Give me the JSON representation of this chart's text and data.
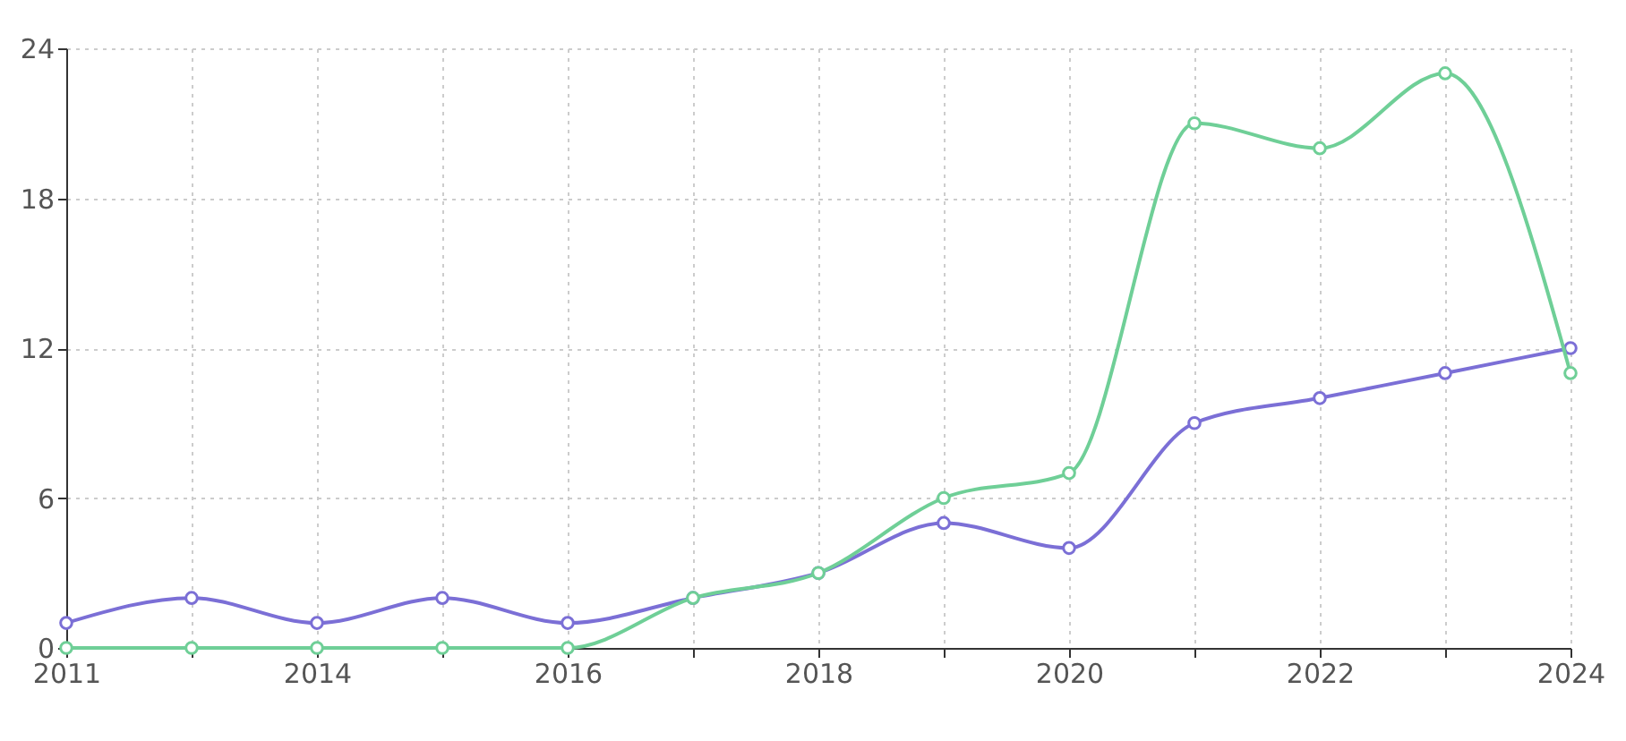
{
  "chart_data": {
    "type": "line",
    "categories": [
      "2011",
      null,
      "2014",
      null,
      "2016",
      null,
      "2018",
      null,
      "2020",
      null,
      "2022",
      null,
      "2024"
    ],
    "series": [
      {
        "color": "#7b6fd6",
        "values": [
          1,
          2,
          1,
          2,
          1,
          2,
          3,
          5,
          4,
          9,
          10,
          11,
          12
        ]
      },
      {
        "color": "#6fcf97",
        "values": [
          0,
          0,
          0,
          0,
          0,
          2,
          3,
          6,
          7,
          21,
          20,
          23,
          11
        ]
      }
    ],
    "ylim": [
      0,
      24
    ],
    "yticks": [
      0,
      6,
      12,
      18,
      24
    ],
    "grid": true,
    "marker": "circle",
    "line_style": "solid"
  }
}
